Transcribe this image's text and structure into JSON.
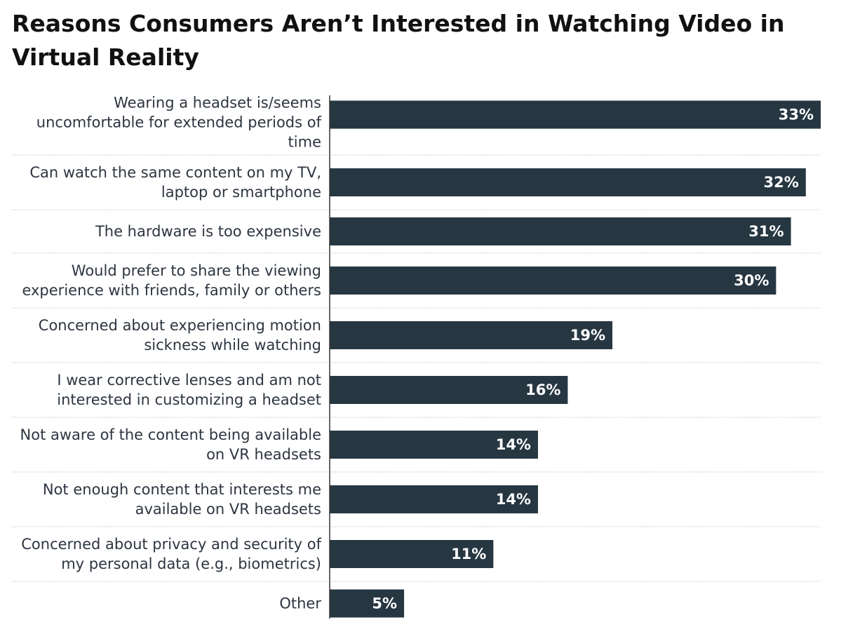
{
  "chart_data": {
    "type": "bar",
    "orientation": "horizontal",
    "title": "Reasons Consumers Aren’t Interested in Watching Video in Virtual Reality",
    "categories": [
      "Wearing a headset is/seems uncomfortable for extended periods of time",
      "Can watch the same content on my TV, laptop or smartphone",
      "The hardware is too expensive",
      "Would prefer to share the viewing experience with friends, family or others",
      "Concerned about experiencing motion sickness while watching",
      "I wear corrective lenses and am not interested in customizing a headset",
      "Not aware of the content being available on VR headsets",
      "Not enough content that interests me available on VR headsets",
      "Concerned about privacy and security of my personal data (e.g., biometrics)",
      "Other"
    ],
    "category_lines": [
      [
        "Wearing a headset is/seems",
        "uncomfortable for extended periods of",
        "time"
      ],
      [
        "Can watch the same content on my TV,",
        "laptop or smartphone"
      ],
      [
        "The hardware is too expensive"
      ],
      [
        "Would prefer to share the viewing",
        "experience with friends, family or others"
      ],
      [
        "Concerned about experiencing motion",
        "sickness while watching"
      ],
      [
        "I wear corrective lenses and am not",
        "interested in customizing a headset"
      ],
      [
        "Not aware of the content being available",
        "on VR headsets"
      ],
      [
        "Not enough content that interests me",
        "available on VR headsets"
      ],
      [
        "Concerned about privacy and security of",
        "my personal data (e.g., biometrics)"
      ],
      [
        "Other"
      ]
    ],
    "values": [
      33,
      32,
      31,
      30,
      19,
      16,
      14,
      14,
      11,
      5
    ],
    "value_labels": [
      "33%",
      "32%",
      "31%",
      "30%",
      "19%",
      "16%",
      "14%",
      "14%",
      "11%",
      "5%"
    ],
    "unit": "%",
    "xlim": [
      0,
      33
    ],
    "xlabel": "",
    "ylabel": "",
    "grid": false,
    "bar_color": "#263742",
    "label_color": "#2d3540",
    "divider_color": "#c8c8c8"
  }
}
